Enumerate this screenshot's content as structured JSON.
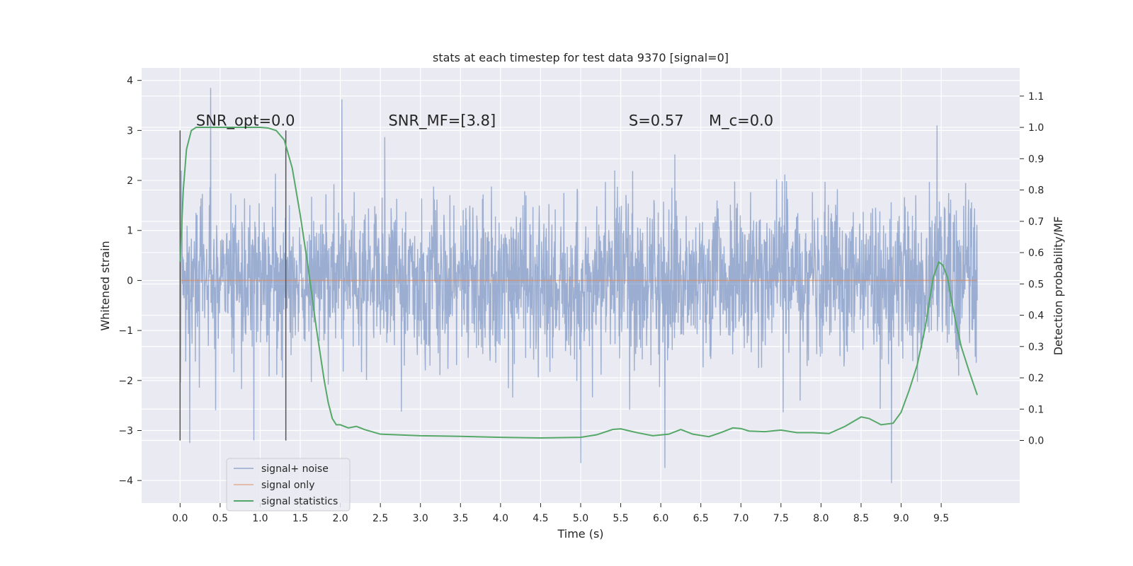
{
  "chart_data": {
    "type": "line",
    "title": "stats at each timestep for test data 9370 [signal=0]",
    "xlabel": "Time (s)",
    "ylabel": "Whitened strain",
    "ylabel_right": "Detection probability/MF",
    "xlim": [
      -0.48,
      10.48
    ],
    "ylim": [
      -4.45,
      4.25
    ],
    "ylim_right": [
      -0.2,
      1.19
    ],
    "x_ticks": [
      "0.0",
      "0.5",
      "1.0",
      "1.5",
      "2.0",
      "2.5",
      "3.0",
      "3.5",
      "4.0",
      "4.5",
      "5.0",
      "5.5",
      "6.0",
      "6.5",
      "7.0",
      "7.5",
      "8.0",
      "8.5",
      "9.0",
      "9.5"
    ],
    "y_ticks": [
      "4",
      "3",
      "2",
      "1",
      "0",
      "−1",
      "−2",
      "−3",
      "−4"
    ],
    "y_ticks_right": [
      "1.1",
      "1.0",
      "0.9",
      "0.8",
      "0.7",
      "0.6",
      "0.5",
      "0.4",
      "0.3",
      "0.2",
      "0.1",
      "0.0"
    ],
    "grid": true,
    "legend_position": "lower-left",
    "vlines": [
      0.0,
      1.32
    ],
    "vline_range": [
      -3.2,
      3.0
    ],
    "annotations": [
      {
        "text": "SNR_opt=0.0",
        "x": 0.2,
        "y": 3.1
      },
      {
        "text": "SNR_MF=[3.8]",
        "x": 2.6,
        "y": 3.1
      },
      {
        "text": "S=0.57",
        "x": 5.6,
        "y": 3.1
      },
      {
        "text": "M_c=0.0",
        "x": 6.6,
        "y": 3.1
      }
    ],
    "series": [
      {
        "name": "signal+ noise",
        "color": "#4c72b0",
        "axis": "left",
        "x_range": [
          0.0,
          9.95
        ],
        "noise_std": 0.78,
        "spikes": [
          [
            0.38,
            3.85
          ],
          [
            2.02,
            3.62
          ],
          [
            5.0,
            -3.65
          ],
          [
            6.05,
            -3.75
          ],
          [
            8.88,
            -4.05
          ],
          [
            0.12,
            -3.25
          ],
          [
            0.92,
            -3.2
          ],
          [
            9.45,
            3.1
          ]
        ]
      },
      {
        "name": "signal only",
        "color": "#dd8452",
        "axis": "left",
        "x": [
          0.0,
          9.95
        ],
        "y": [
          0.0,
          0.0
        ]
      },
      {
        "name": "signal statistics",
        "color": "#55a868",
        "axis": "right",
        "x": [
          0.0,
          0.04,
          0.08,
          0.14,
          0.2,
          0.3,
          0.45,
          0.6,
          0.8,
          1.0,
          1.1,
          1.2,
          1.3,
          1.4,
          1.5,
          1.6,
          1.7,
          1.8,
          1.85,
          1.9,
          1.95,
          2.0,
          2.1,
          2.2,
          2.3,
          2.5,
          3.0,
          3.5,
          4.0,
          4.5,
          5.0,
          5.2,
          5.4,
          5.5,
          5.7,
          5.9,
          6.1,
          6.25,
          6.4,
          6.6,
          6.75,
          6.9,
          7.0,
          7.1,
          7.3,
          7.5,
          7.7,
          7.9,
          8.1,
          8.3,
          8.5,
          8.6,
          8.75,
          8.9,
          9.0,
          9.1,
          9.2,
          9.3,
          9.4,
          9.47,
          9.52,
          9.58,
          9.62,
          9.68,
          9.75,
          9.85,
          9.95
        ],
        "y": [
          0.57,
          0.8,
          0.93,
          0.99,
          1.0,
          1.0,
          1.0,
          1.0,
          1.0,
          1.0,
          0.998,
          0.99,
          0.96,
          0.87,
          0.72,
          0.55,
          0.36,
          0.19,
          0.12,
          0.07,
          0.05,
          0.05,
          0.04,
          0.045,
          0.035,
          0.02,
          0.015,
          0.013,
          0.01,
          0.008,
          0.01,
          0.018,
          0.035,
          0.037,
          0.025,
          0.015,
          0.02,
          0.035,
          0.02,
          0.012,
          0.025,
          0.04,
          0.038,
          0.03,
          0.028,
          0.033,
          0.025,
          0.025,
          0.022,
          0.045,
          0.075,
          0.07,
          0.05,
          0.055,
          0.09,
          0.16,
          0.24,
          0.36,
          0.52,
          0.57,
          0.56,
          0.52,
          0.46,
          0.38,
          0.3,
          0.22,
          0.145
        ]
      }
    ]
  }
}
